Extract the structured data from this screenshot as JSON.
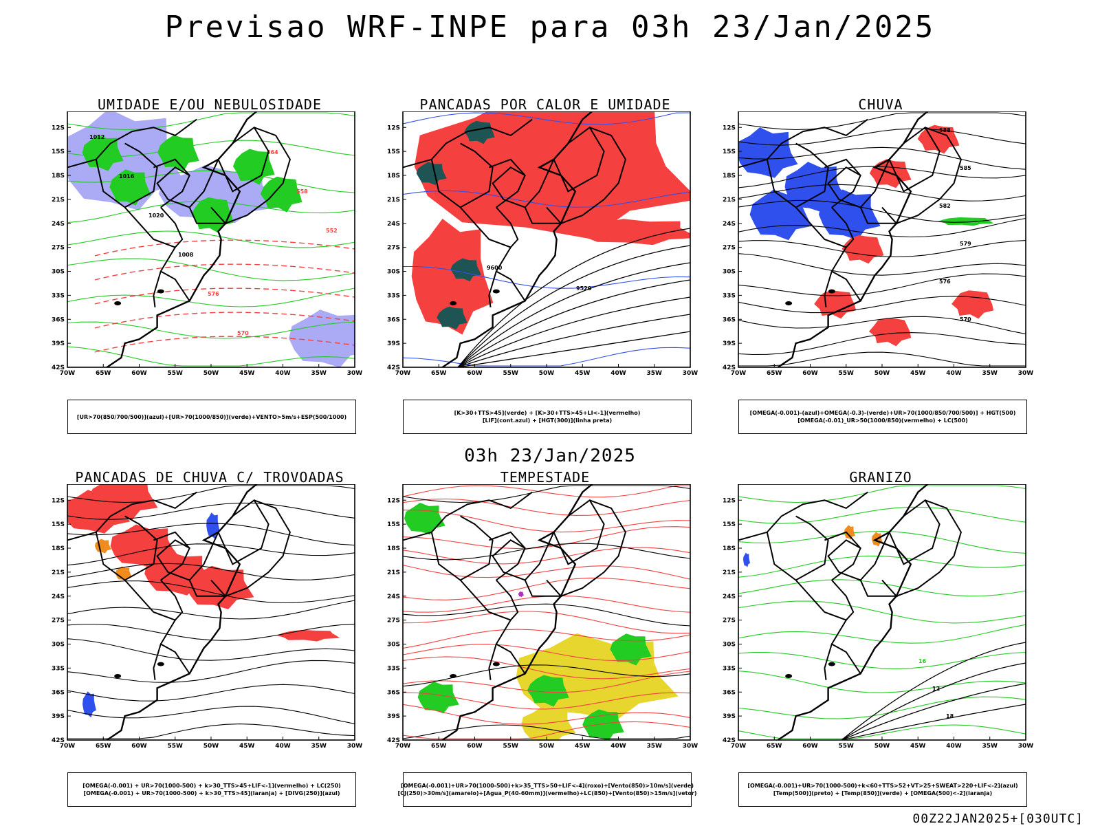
{
  "header": {
    "title": "Previsao WRF-INPE  para 03h 23/Jan/2025"
  },
  "middle_title": "03h 23/Jan/2025",
  "footer": {
    "stamp": "00Z22JAN2025+[030UTC]"
  },
  "axes": {
    "lat_labels": [
      "12S",
      "15S",
      "18S",
      "21S",
      "24S",
      "27S",
      "30S",
      "33S",
      "36S",
      "39S",
      "42S"
    ],
    "lon_labels": [
      "70W",
      "65W",
      "60W",
      "55W",
      "50W",
      "45W",
      "40W",
      "35W",
      "30W"
    ]
  },
  "colors": {
    "blue": "#3050ee",
    "lavender": "#aaaaf5",
    "green": "#22cc22",
    "red": "#f54040",
    "darkteal": "#1e5454",
    "yellow": "#e6d62e",
    "orange": "#f08c1e",
    "purple": "#b030c0"
  },
  "panels": [
    {
      "id": "umidade",
      "title": "UMIDADE E/OU NEBULOSIDADE",
      "legend": [
        "[UR>70(850/700/500)](azul)+[UR>70(1000/850)](verde)+VENTO>5m/s+ESP(500/1000)"
      ],
      "labels": [
        "1012",
        "1016",
        "1020",
        "1008",
        "576",
        "570",
        "564",
        "558",
        "552"
      ]
    },
    {
      "id": "pancadas-calor",
      "title": "PANCADAS POR CALOR E UMIDADE",
      "legend": [
        "[K>30+TTS>45](verde) + [K>30+TTS>45+LI<-1](vermelho)",
        "[LIF](cont.azul) + [HGT(300)](linha preta)"
      ],
      "labels": [
        "9600",
        "9520"
      ]
    },
    {
      "id": "chuva",
      "title": "CHUVA",
      "legend": [
        "[OMEGA(-0.001)-(azul)+OMEGA(-0.3)-(verde)+UR>70(1000/850/700/500)] + HGT(500)",
        "[OMEGA(-0.01)_UR>50(1000/850)(vermelho) + LC(500)"
      ],
      "labels": [
        "588",
        "585",
        "582",
        "579",
        "576",
        "570"
      ]
    },
    {
      "id": "pancadas-trovoadas",
      "title": "PANCADAS DE CHUVA C/ TROVOADAS",
      "legend": [
        "[OMEGA(-0.001) + UR>70(1000-500) + k>30_TTS>45+LIF<-1](vermelho) + LC(250)",
        "[OMEGA(-0.001) + UR>70(1000-500) + k>30_TTS>45](laranja) + [DIVG(250)](azul)"
      ],
      "labels": []
    },
    {
      "id": "tempestade",
      "title": "TEMPESTADE",
      "legend": [
        "[OMEGA(-0.001)+UR>70(1000-500)+k>35_TTS>50+LIF<-4](roxo)+[Vento(850)>10m/s](verde)",
        "[CJ(250)>30m/s](amarelo)+[Agua_P(40-60mm)](vermelho)+LC(850)+[Vento(850)>15m/s](vetor)"
      ],
      "labels": []
    },
    {
      "id": "granizo",
      "title": "GRANIZO",
      "legend": [
        "[OMEGA(-0.001)+UR>70(1000-500)+k<60+TTS>52+VT>25+SWEAT>220+LIF<-2](azul)",
        "[Temp(500)](preto) + [Temp(850)](verde) + [OMEGA(500)<-2](laranja)"
      ],
      "labels": [
        "16",
        "12",
        "18"
      ]
    }
  ]
}
